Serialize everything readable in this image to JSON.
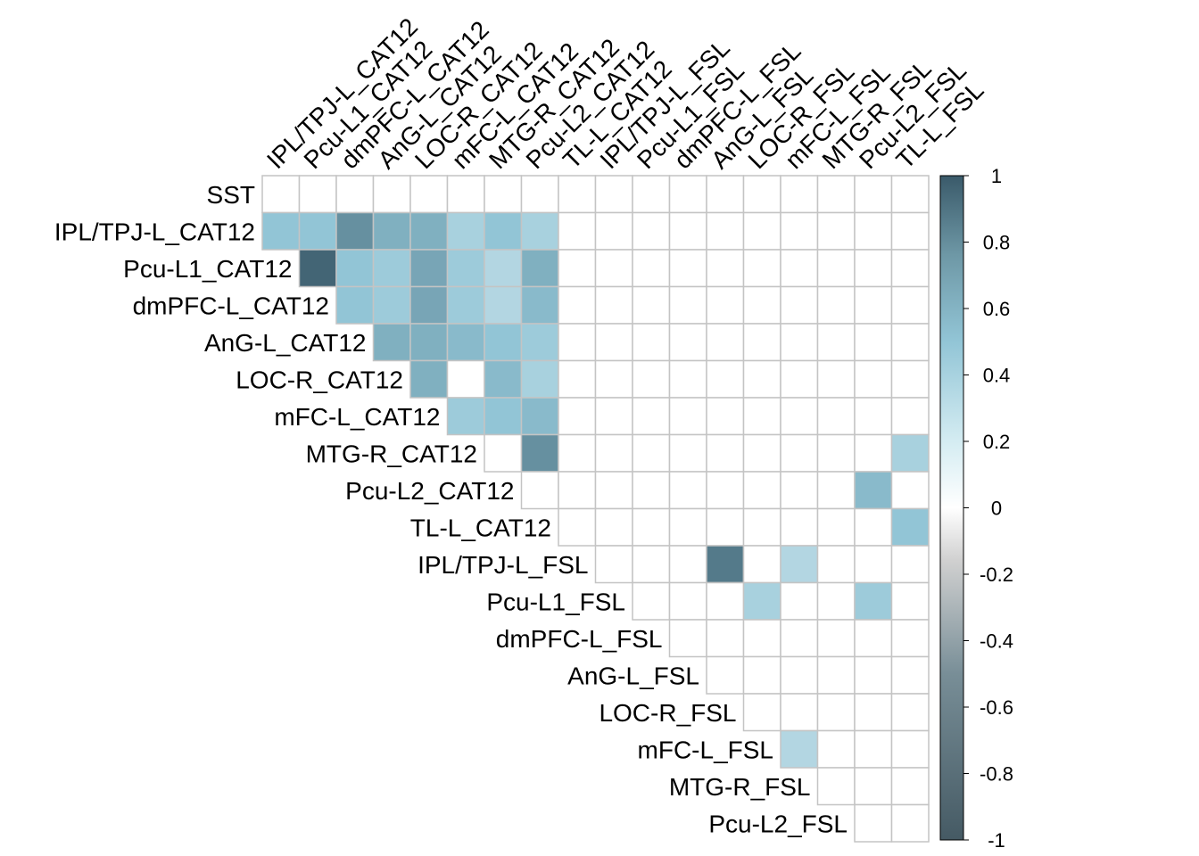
{
  "chart_data": {
    "type": "heatmap",
    "subtype": "upper-triangular correlation matrix",
    "title": "",
    "variables": [
      "SST",
      "IPL/TPJ-L_CAT12",
      "Pcu-L1_CAT12",
      "dmPFC-L_CAT12",
      "AnG-L_CAT12",
      "LOC-R_CAT12",
      "mFC-L_CAT12",
      "MTG-R_CAT12",
      "Pcu-L2_CAT12",
      "TL-L_CAT12",
      "IPL/TPJ-L_FSL",
      "Pcu-L1_FSL",
      "dmPFC-L_FSL",
      "AnG-L_FSL",
      "LOC-R_FSL",
      "mFC-L_FSL",
      "MTG-R_FSL",
      "Pcu-L2_FSL",
      "TL-L_FSL"
    ],
    "row_labels": [
      "SST",
      "IPL/TPJ-L_CAT12",
      "Pcu-L1_CAT12",
      "dmPFC-L_CAT12",
      "AnG-L_CAT12",
      "LOC-R_CAT12",
      "mFC-L_CAT12",
      "MTG-R_CAT12",
      "Pcu-L2_CAT12",
      "TL-L_CAT12",
      "IPL/TPJ-L_FSL",
      "Pcu-L1_FSL",
      "dmPFC-L_FSL",
      "AnG-L_FSL",
      "LOC-R_FSL",
      "mFC-L_FSL",
      "MTG-R_FSL",
      "Pcu-L2_FSL"
    ],
    "column_labels": [
      "IPL/TPJ-L_CAT12",
      "Pcu-L1_CAT12",
      "dmPFC-L_CAT12",
      "AnG-L_CAT12",
      "LOC-R_CAT12",
      "mFC-L_CAT12",
      "MTG-R_CAT12",
      "Pcu-L2_CAT12",
      "TL-L_CAT12",
      "IPL/TPJ-L_FSL",
      "Pcu-L1_FSL",
      "dmPFC-L_FSL",
      "AnG-L_FSL",
      "LOC-R_FSL",
      "mFC-L_FSL",
      "MTG-R_FSL",
      "Pcu-L2_FSL",
      "TL-L_FSL"
    ],
    "cells": [
      {
        "row": "IPL/TPJ-L_CAT12",
        "col": "IPL/TPJ-L_CAT12",
        "value": 0.5
      },
      {
        "row": "IPL/TPJ-L_CAT12",
        "col": "Pcu-L1_CAT12",
        "value": 0.5
      },
      {
        "row": "IPL/TPJ-L_CAT12",
        "col": "dmPFC-L_CAT12",
        "value": 0.75
      },
      {
        "row": "IPL/TPJ-L_CAT12",
        "col": "AnG-L_CAT12",
        "value": 0.6
      },
      {
        "row": "IPL/TPJ-L_CAT12",
        "col": "LOC-R_CAT12",
        "value": 0.6
      },
      {
        "row": "IPL/TPJ-L_CAT12",
        "col": "mFC-L_CAT12",
        "value": 0.4
      },
      {
        "row": "IPL/TPJ-L_CAT12",
        "col": "MTG-R_CAT12",
        "value": 0.5
      },
      {
        "row": "IPL/TPJ-L_CAT12",
        "col": "Pcu-L2_CAT12",
        "value": 0.4
      },
      {
        "row": "Pcu-L1_CAT12",
        "col": "Pcu-L1_CAT12",
        "value": 0.95
      },
      {
        "row": "Pcu-L1_CAT12",
        "col": "dmPFC-L_CAT12",
        "value": 0.5
      },
      {
        "row": "Pcu-L1_CAT12",
        "col": "AnG-L_CAT12",
        "value": 0.45
      },
      {
        "row": "Pcu-L1_CAT12",
        "col": "LOC-R_CAT12",
        "value": 0.65
      },
      {
        "row": "Pcu-L1_CAT12",
        "col": "mFC-L_CAT12",
        "value": 0.45
      },
      {
        "row": "Pcu-L1_CAT12",
        "col": "MTG-R_CAT12",
        "value": 0.35
      },
      {
        "row": "Pcu-L1_CAT12",
        "col": "Pcu-L2_CAT12",
        "value": 0.6
      },
      {
        "row": "dmPFC-L_CAT12",
        "col": "dmPFC-L_CAT12",
        "value": 0.5
      },
      {
        "row": "dmPFC-L_CAT12",
        "col": "AnG-L_CAT12",
        "value": 0.45
      },
      {
        "row": "dmPFC-L_CAT12",
        "col": "LOC-R_CAT12",
        "value": 0.65
      },
      {
        "row": "dmPFC-L_CAT12",
        "col": "mFC-L_CAT12",
        "value": 0.45
      },
      {
        "row": "dmPFC-L_CAT12",
        "col": "MTG-R_CAT12",
        "value": 0.35
      },
      {
        "row": "dmPFC-L_CAT12",
        "col": "Pcu-L2_CAT12",
        "value": 0.55
      },
      {
        "row": "AnG-L_CAT12",
        "col": "AnG-L_CAT12",
        "value": 0.6
      },
      {
        "row": "AnG-L_CAT12",
        "col": "LOC-R_CAT12",
        "value": 0.6
      },
      {
        "row": "AnG-L_CAT12",
        "col": "mFC-L_CAT12",
        "value": 0.55
      },
      {
        "row": "AnG-L_CAT12",
        "col": "MTG-R_CAT12",
        "value": 0.5
      },
      {
        "row": "AnG-L_CAT12",
        "col": "Pcu-L2_CAT12",
        "value": 0.45
      },
      {
        "row": "LOC-R_CAT12",
        "col": "LOC-R_CAT12",
        "value": 0.6
      },
      {
        "row": "LOC-R_CAT12",
        "col": "mFC-L_CAT12",
        "value": 0.0
      },
      {
        "row": "LOC-R_CAT12",
        "col": "MTG-R_CAT12",
        "value": 0.55
      },
      {
        "row": "LOC-R_CAT12",
        "col": "Pcu-L2_CAT12",
        "value": 0.4
      },
      {
        "row": "mFC-L_CAT12",
        "col": "mFC-L_CAT12",
        "value": 0.45
      },
      {
        "row": "mFC-L_CAT12",
        "col": "MTG-R_CAT12",
        "value": 0.5
      },
      {
        "row": "mFC-L_CAT12",
        "col": "Pcu-L2_CAT12",
        "value": 0.55
      },
      {
        "row": "MTG-R_CAT12",
        "col": "Pcu-L2_CAT12",
        "value": 0.75
      },
      {
        "row": "MTG-R_CAT12",
        "col": "TL-L_FSL",
        "value": 0.4
      },
      {
        "row": "Pcu-L2_CAT12",
        "col": "Pcu-L2_FSL",
        "value": 0.55
      },
      {
        "row": "TL-L_CAT12",
        "col": "TL-L_FSL",
        "value": 0.5
      },
      {
        "row": "IPL/TPJ-L_FSL",
        "col": "AnG-L_FSL",
        "value": 0.85
      },
      {
        "row": "IPL/TPJ-L_FSL",
        "col": "mFC-L_FSL",
        "value": 0.35
      },
      {
        "row": "Pcu-L1_FSL",
        "col": "LOC-R_FSL",
        "value": 0.4
      },
      {
        "row": "Pcu-L1_FSL",
        "col": "Pcu-L2_FSL",
        "value": 0.45
      },
      {
        "row": "mFC-L_FSL",
        "col": "mFC-L_FSL",
        "value": 0.35
      }
    ],
    "colorbar": {
      "min": -1,
      "max": 1,
      "ticks": [
        "1",
        "0.8",
        "0.6",
        "0.4",
        "0.2",
        "0",
        "-0.2",
        "-0.4",
        "-0.6",
        "-0.8",
        "-1"
      ],
      "colors": {
        "neg": "#455a64",
        "mid": "#ffffff",
        "pos_mid": "#92c5d6",
        "pos": "#3a5a6a"
      },
      "placement": "right"
    },
    "grid_color": "#c4c4c4"
  }
}
